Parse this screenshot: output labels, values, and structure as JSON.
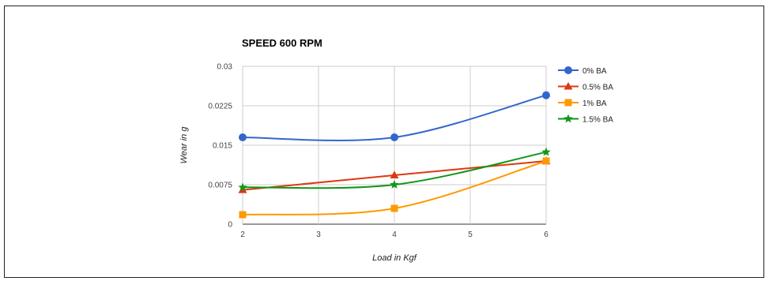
{
  "chart_data": {
    "type": "line",
    "title": "SPEED 600 RPM",
    "xlabel": "Load in Kgf",
    "ylabel": "Wear in g",
    "x": [
      2,
      4,
      6
    ],
    "x_ticks": [
      "2",
      "3",
      "4",
      "5",
      "6"
    ],
    "y_ticks": [
      "0",
      "0.0075",
      "0.015",
      "0.0225",
      "0.03"
    ],
    "xlim": [
      2,
      6
    ],
    "ylim": [
      0,
      0.03
    ],
    "grid": true,
    "legend_position": "right",
    "series": [
      {
        "name": "0% BA",
        "color": "#3366cc",
        "marker": "circle",
        "values": [
          0.0165,
          0.0165,
          0.0245
        ]
      },
      {
        "name": "0.5% BA",
        "color": "#dc3912",
        "marker": "triangle",
        "values": [
          0.0065,
          0.0093,
          0.012
        ]
      },
      {
        "name": "1% BA",
        "color": "#ff9900",
        "marker": "square",
        "values": [
          0.0018,
          0.003,
          0.012
        ]
      },
      {
        "name": "1.5% BA",
        "color": "#109618",
        "marker": "star",
        "values": [
          0.007,
          0.0075,
          0.0137
        ]
      }
    ]
  }
}
